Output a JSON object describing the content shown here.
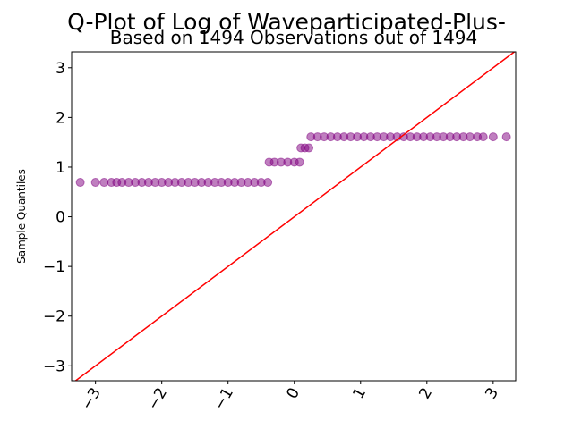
{
  "chart_data": {
    "type": "scatter",
    "title": "Q-Plot of Log of Waveparticipated-Plus-",
    "subtitle": "Based on 1494 Observations out of 1494",
    "y_label": "Sample Quantiles",
    "x": [
      -3.23,
      -3.0,
      -2.87,
      -2.76,
      -2.68,
      -2.6,
      -2.5,
      -2.4,
      -2.3,
      -2.2,
      -2.1,
      -2.0,
      -1.9,
      -1.8,
      -1.7,
      -1.6,
      -1.5,
      -1.4,
      -1.3,
      -1.2,
      -1.1,
      -1.0,
      -0.9,
      -0.8,
      -0.7,
      -0.6,
      -0.5,
      -0.4,
      -0.38,
      -0.3,
      -0.2,
      -0.1,
      0.0,
      0.08,
      0.1,
      0.16,
      0.22,
      0.25,
      0.35,
      0.45,
      0.55,
      0.65,
      0.75,
      0.85,
      0.95,
      1.05,
      1.15,
      1.25,
      1.35,
      1.45,
      1.55,
      1.65,
      1.75,
      1.85,
      1.95,
      2.05,
      2.15,
      2.25,
      2.35,
      2.45,
      2.55,
      2.65,
      2.76,
      2.85,
      3.0,
      3.2
    ],
    "series": [
      {
        "color": "purple",
        "values": [
          0.693,
          0.693,
          0.693,
          0.693,
          0.693,
          0.693,
          0.693,
          0.693,
          0.693,
          0.693,
          0.693,
          0.693,
          0.693,
          0.693,
          0.693,
          0.693,
          0.693,
          0.693,
          0.693,
          0.693,
          0.693,
          0.693,
          0.693,
          0.693,
          0.693,
          0.693,
          0.693,
          0.693,
          1.099,
          1.099,
          1.099,
          1.099,
          1.099,
          1.099,
          1.386,
          1.386,
          1.386,
          1.609,
          1.609,
          1.609,
          1.609,
          1.609,
          1.609,
          1.609,
          1.609,
          1.609,
          1.609,
          1.609,
          1.609,
          1.609,
          1.609,
          1.609,
          1.609,
          1.609,
          1.609,
          1.609,
          1.609,
          1.609,
          1.609,
          1.609,
          1.609,
          1.609,
          1.609,
          1.609,
          1.609,
          1.609
        ]
      }
    ],
    "xlim": [
      -3.36,
      3.34
    ],
    "ylim": [
      -3.3,
      3.32
    ],
    "xticks": [
      {
        "value": -3,
        "label": "−3"
      },
      {
        "value": -2,
        "label": "−2"
      },
      {
        "value": -1,
        "label": "−1"
      },
      0,
      1,
      2,
      3
    ],
    "yticks": [
      {
        "value": -3,
        "label": "−3"
      },
      {
        "value": -2,
        "label": "−2"
      },
      {
        "value": -1,
        "label": "−1"
      },
      0,
      1,
      2,
      3
    ],
    "reference_line": "45",
    "line_color": "red"
  }
}
